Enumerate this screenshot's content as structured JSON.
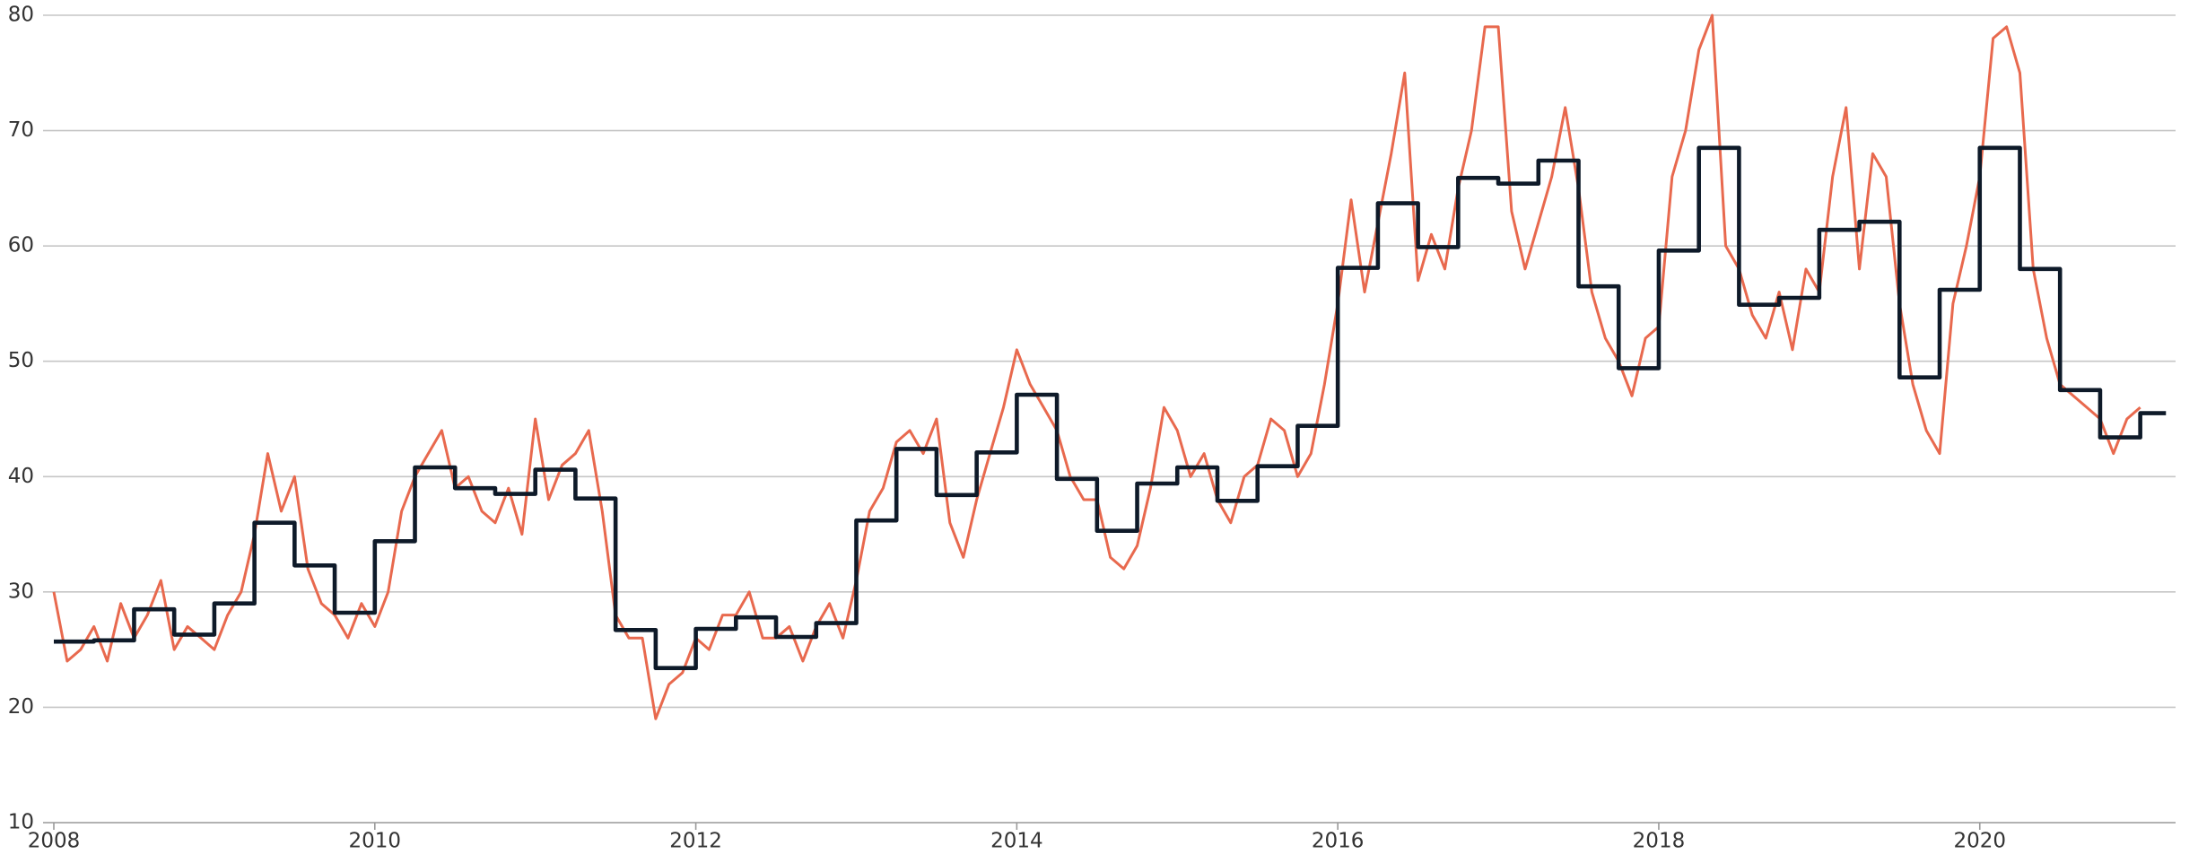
{
  "chart_data": {
    "type": "line",
    "xlim": [
      2008,
      2021.22
    ],
    "ylim": [
      10,
      80
    ],
    "xticks": [
      2008,
      2010,
      2012,
      2014,
      2016,
      2018,
      2020
    ],
    "yticks": [
      10,
      20,
      30,
      40,
      50,
      60,
      70,
      80
    ],
    "grid": true,
    "series": [
      {
        "color": "#e8694e",
        "x": [
          2008,
          2008.083,
          2008.167,
          2008.25,
          2008.333,
          2008.417,
          2008.5,
          2008.583,
          2008.667,
          2008.75,
          2008.833,
          2008.917,
          2009,
          2009.083,
          2009.167,
          2009.25,
          2009.333,
          2009.417,
          2009.5,
          2009.583,
          2009.667,
          2009.75,
          2009.833,
          2009.917,
          2010,
          2010.083,
          2010.167,
          2010.25,
          2010.333,
          2010.417,
          2010.5,
          2010.583,
          2010.667,
          2010.75,
          2010.833,
          2010.917,
          2011,
          2011.083,
          2011.167,
          2011.25,
          2011.333,
          2011.417,
          2011.5,
          2011.583,
          2011.667,
          2011.75,
          2011.833,
          2011.917,
          2012,
          2012.083,
          2012.167,
          2012.25,
          2012.333,
          2012.417,
          2012.5,
          2012.583,
          2012.667,
          2012.75,
          2012.833,
          2012.917,
          2013,
          2013.083,
          2013.167,
          2013.25,
          2013.333,
          2013.417,
          2013.5,
          2013.583,
          2013.667,
          2013.75,
          2013.833,
          2013.917,
          2014,
          2014.083,
          2014.167,
          2014.25,
          2014.333,
          2014.417,
          2014.5,
          2014.583,
          2014.667,
          2014.75,
          2014.833,
          2014.917,
          2015,
          2015.083,
          2015.167,
          2015.25,
          2015.333,
          2015.417,
          2015.5,
          2015.583,
          2015.667,
          2015.75,
          2015.833,
          2015.917,
          2016,
          2016.083,
          2016.167,
          2016.25,
          2016.333,
          2016.417,
          2016.5,
          2016.583,
          2016.667,
          2016.75,
          2016.833,
          2016.917,
          2017,
          2017.083,
          2017.167,
          2017.25,
          2017.333,
          2017.417,
          2017.5,
          2017.583,
          2017.667,
          2017.75,
          2017.833,
          2017.917,
          2018,
          2018.083,
          2018.167,
          2018.25,
          2018.333,
          2018.417,
          2018.5,
          2018.583,
          2018.667,
          2018.75,
          2018.833,
          2018.917,
          2019,
          2019.083,
          2019.167,
          2019.25,
          2019.333,
          2019.417,
          2019.5,
          2019.583,
          2019.667,
          2019.75,
          2019.833,
          2019.917,
          2020,
          2020.083,
          2020.167,
          2020.25,
          2020.333,
          2020.417,
          2020.5,
          2020.583,
          2020.667,
          2020.75,
          2020.833,
          2020.917,
          2021
        ],
        "values": [
          30,
          24,
          25,
          27,
          24,
          29,
          26,
          28,
          31,
          25,
          27,
          26,
          25,
          28,
          30,
          35,
          42,
          37,
          40,
          32,
          29,
          28,
          26,
          29,
          27,
          30,
          37,
          40,
          42,
          44,
          39,
          40,
          37,
          36,
          39,
          35,
          45,
          38,
          41,
          42,
          44,
          37,
          28,
          26,
          26,
          19,
          22,
          23,
          26,
          25,
          28,
          28,
          30,
          26,
          26,
          27,
          24,
          27,
          29,
          26,
          31,
          37,
          39,
          43,
          44,
          42,
          45,
          36,
          33,
          38,
          42,
          46,
          51,
          48,
          46,
          44,
          40,
          38,
          38,
          33,
          32,
          34,
          39,
          46,
          44,
          40,
          42,
          38,
          36,
          40,
          41,
          45,
          44,
          40,
          42,
          48,
          55,
          64,
          56,
          62,
          68,
          75,
          57,
          61,
          58,
          65,
          70,
          79,
          79,
          63,
          58,
          62,
          66,
          72,
          65,
          56,
          52,
          50,
          47,
          52,
          53,
          66,
          70,
          77,
          80,
          60,
          58,
          54,
          52,
          56,
          51,
          58,
          56,
          66,
          72,
          58,
          68,
          66,
          55,
          48,
          44,
          42,
          55,
          60,
          66,
          78,
          79,
          75,
          58,
          52,
          48,
          47,
          46,
          45,
          42,
          45,
          46
        ]
      },
      {
        "color": "#0e1a29",
        "step": "after",
        "x": [
          2008,
          2008.25,
          2008.5,
          2008.75,
          2009,
          2009.25,
          2009.5,
          2009.75,
          2010,
          2010.25,
          2010.5,
          2010.75,
          2011,
          2011.25,
          2011.5,
          2011.75,
          2012,
          2012.25,
          2012.5,
          2012.75,
          2013,
          2013.25,
          2013.5,
          2013.75,
          2014,
          2014.25,
          2014.5,
          2014.75,
          2015,
          2015.25,
          2015.5,
          2015.75,
          2016,
          2016.25,
          2016.5,
          2016.75,
          2017,
          2017.25,
          2017.5,
          2017.75,
          2018,
          2018.25,
          2018.5,
          2018.75,
          2019,
          2019.25,
          2019.5,
          2019.75,
          2020,
          2020.25,
          2020.5,
          2020.75,
          2021,
          2021.16
        ],
        "values": [
          25.7,
          25.8,
          28.5,
          26.3,
          29,
          36,
          32.3,
          28.2,
          34.4,
          40.8,
          39,
          38.5,
          40.6,
          38.1,
          26.7,
          23.4,
          26.8,
          27.8,
          26.1,
          27.3,
          36.2,
          42.4,
          38.4,
          42.1,
          47.1,
          39.8,
          35.3,
          39.4,
          40.8,
          37.9,
          40.9,
          44.4,
          58.1,
          63.7,
          59.9,
          65.9,
          65.4,
          67.4,
          56.5,
          49.4,
          59.6,
          68.5,
          54.9,
          55.5,
          61.4,
          62.1,
          48.6,
          56.2,
          68.5,
          58,
          47.5,
          43.4,
          45.5,
          45.5
        ]
      }
    ]
  }
}
